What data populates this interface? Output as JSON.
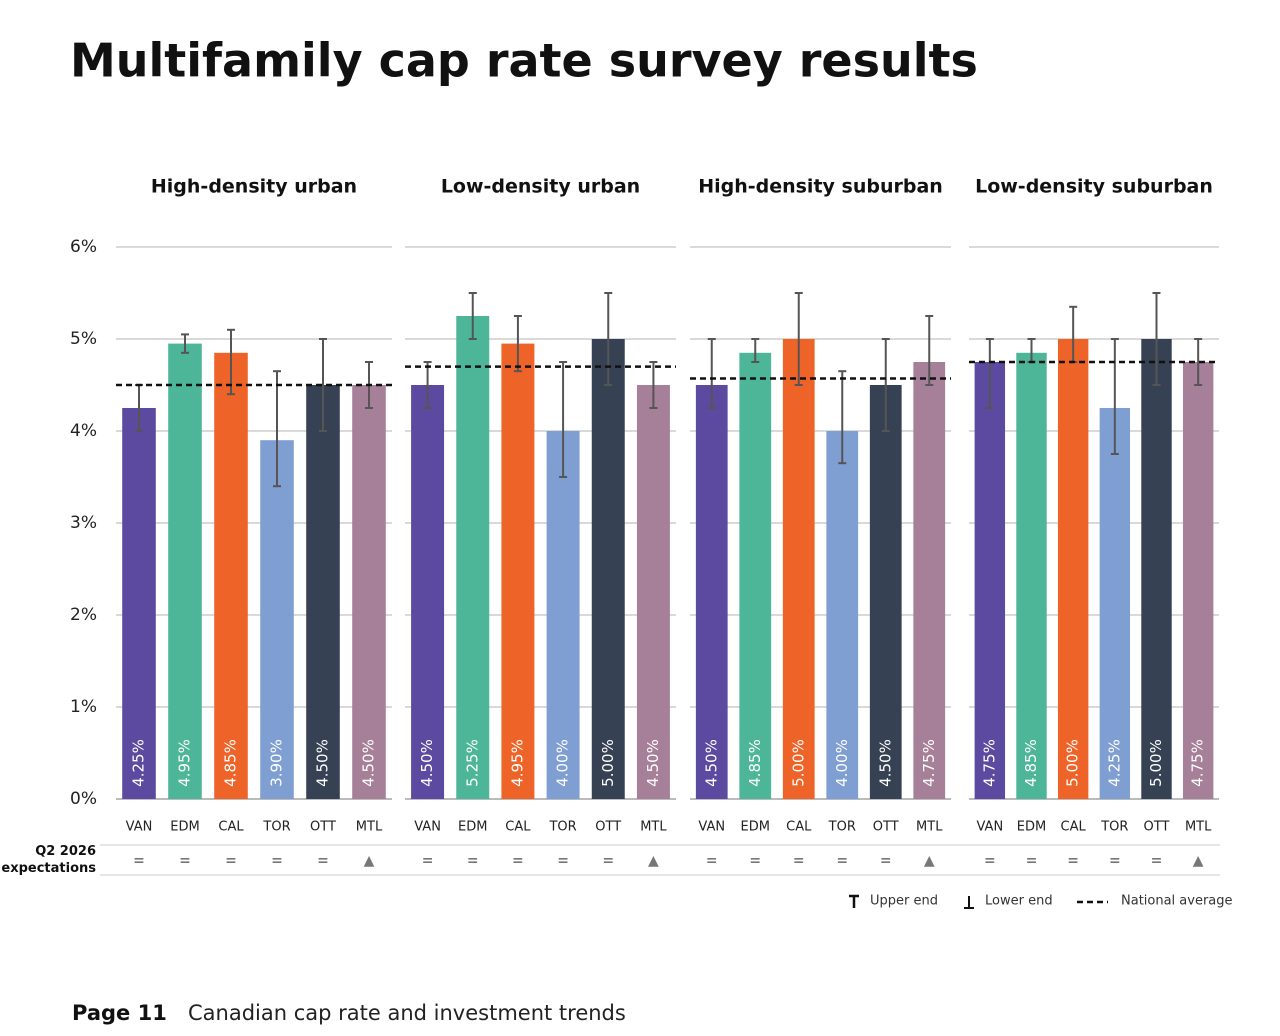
{
  "title": "Multifamily cap rate survey results",
  "chart_data": [
    {
      "type": "bar",
      "title": "High-density urban",
      "categories": [
        "VAN",
        "EDM",
        "CAL",
        "TOR",
        "OTT",
        "MTL"
      ],
      "colors": [
        "#5b4a9f",
        "#4db598",
        "#ee6428",
        "#7f9fd3",
        "#364154",
        "#a67f98"
      ],
      "values": [
        4.25,
        4.95,
        4.85,
        3.9,
        4.5,
        4.5
      ],
      "value_labels": [
        "4.25%",
        "4.95%",
        "4.85%",
        "3.90%",
        "4.50%",
        "4.50%"
      ],
      "error_low": [
        4.0,
        4.85,
        4.4,
        3.4,
        4.0,
        4.25
      ],
      "error_high": [
        4.5,
        5.05,
        5.1,
        4.65,
        5.0,
        4.75
      ],
      "national_average": 4.5,
      "expectations": [
        "=",
        "=",
        "=",
        "=",
        "=",
        "▲"
      ],
      "ylim": [
        0,
        6
      ],
      "yticks": [
        {
          "value": 0,
          "label": "0%"
        },
        {
          "value": 1,
          "label": "1%"
        },
        {
          "value": 2,
          "label": "2%"
        },
        {
          "value": 3,
          "label": "3%"
        },
        {
          "value": 4,
          "label": "4%"
        },
        {
          "value": 5,
          "label": "5%"
        },
        {
          "value": 6,
          "label": "6%"
        }
      ],
      "grid": true
    },
    {
      "type": "bar",
      "title": "Low-density urban",
      "categories": [
        "VAN",
        "EDM",
        "CAL",
        "TOR",
        "OTT",
        "MTL"
      ],
      "colors": [
        "#5b4a9f",
        "#4db598",
        "#ee6428",
        "#7f9fd3",
        "#364154",
        "#a67f98"
      ],
      "values": [
        4.5,
        5.25,
        4.95,
        4.0,
        5.0,
        4.5
      ],
      "value_labels": [
        "4.50%",
        "5.25%",
        "4.95%",
        "4.00%",
        "5.00%",
        "4.50%"
      ],
      "error_low": [
        4.25,
        5.0,
        4.65,
        3.5,
        4.5,
        4.25
      ],
      "error_high": [
        4.75,
        5.5,
        5.25,
        4.75,
        5.5,
        4.75
      ],
      "national_average": 4.7,
      "expectations": [
        "=",
        "=",
        "=",
        "=",
        "=",
        "▲"
      ],
      "ylim": [
        0,
        6
      ],
      "grid": true
    },
    {
      "type": "bar",
      "title": "High-density suburban",
      "categories": [
        "VAN",
        "EDM",
        "CAL",
        "TOR",
        "OTT",
        "MTL"
      ],
      "colors": [
        "#5b4a9f",
        "#4db598",
        "#ee6428",
        "#7f9fd3",
        "#364154",
        "#a67f98"
      ],
      "values": [
        4.5,
        4.85,
        5.0,
        4.0,
        4.5,
        4.75
      ],
      "value_labels": [
        "4.50%",
        "4.85%",
        "5.00%",
        "4.00%",
        "4.50%",
        "4.75%"
      ],
      "error_low": [
        4.25,
        4.75,
        4.5,
        3.65,
        4.0,
        4.5
      ],
      "error_high": [
        5.0,
        5.0,
        5.5,
        4.65,
        5.0,
        5.25
      ],
      "national_average": 4.57,
      "expectations": [
        "=",
        "=",
        "=",
        "=",
        "=",
        "▲"
      ],
      "ylim": [
        0,
        6
      ],
      "grid": true
    },
    {
      "type": "bar",
      "title": "Low-density suburban",
      "categories": [
        "VAN",
        "EDM",
        "CAL",
        "TOR",
        "OTT",
        "MTL"
      ],
      "colors": [
        "#5b4a9f",
        "#4db598",
        "#ee6428",
        "#7f9fd3",
        "#364154",
        "#a67f98"
      ],
      "values": [
        4.75,
        4.85,
        5.0,
        4.25,
        5.0,
        4.75
      ],
      "value_labels": [
        "4.75%",
        "4.85%",
        "5.00%",
        "4.25%",
        "5.00%",
        "4.75%"
      ],
      "error_low": [
        4.25,
        4.75,
        4.75,
        3.75,
        4.5,
        4.5
      ],
      "error_high": [
        5.0,
        5.0,
        5.35,
        5.0,
        5.5,
        5.0
      ],
      "national_average": 4.75,
      "expectations": [
        "=",
        "=",
        "=",
        "=",
        "=",
        "▲"
      ],
      "ylim": [
        0,
        6
      ],
      "grid": true
    }
  ],
  "expectations_label": "Q2 2026 expectations",
  "legend": {
    "upper": "Upper end",
    "lower": "Lower end",
    "average": "National average"
  },
  "footer": {
    "page": "Page 11",
    "text": "Canadian cap rate and investment trends"
  }
}
